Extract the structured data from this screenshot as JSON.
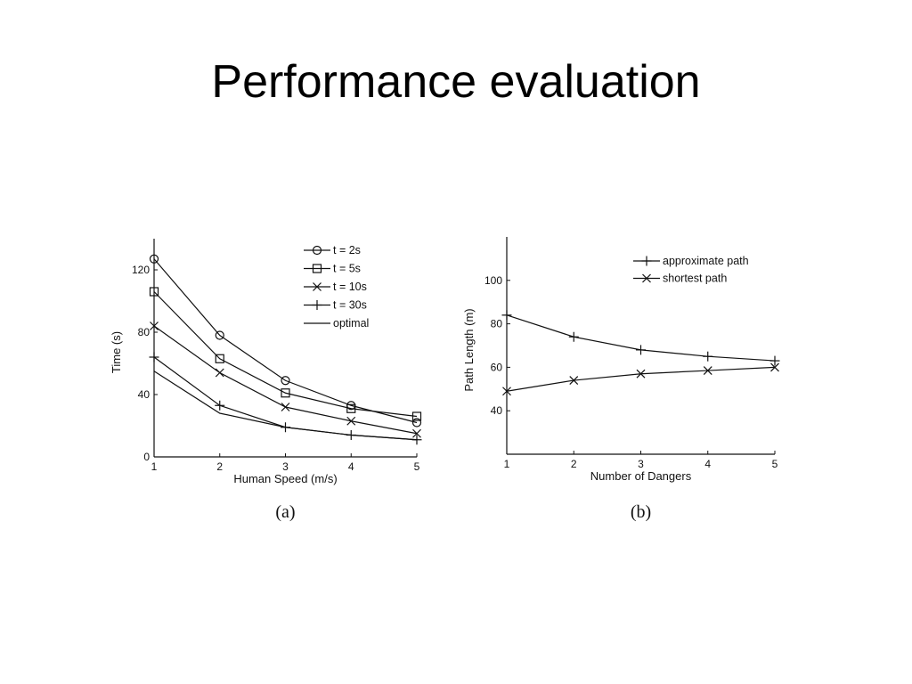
{
  "slide": {
    "title": "Performance evaluation"
  },
  "colors": {
    "ink": "#111111",
    "background": "#ffffff"
  },
  "chart_data": [
    {
      "id": "a",
      "type": "line",
      "caption": "(a)",
      "title": "",
      "xlabel": "Human Speed (m/s)",
      "ylabel": "Time (s)",
      "xlim": [
        1,
        5
      ],
      "ylim": [
        0,
        140
      ],
      "xticks": [
        1,
        2,
        3,
        4,
        5
      ],
      "yticks": [
        0,
        40,
        80,
        120
      ],
      "grid": false,
      "legend_position": "top-right",
      "x": [
        1,
        2,
        3,
        4,
        5
      ],
      "series": [
        {
          "name": "t = 2s",
          "marker": "circle",
          "values": [
            127,
            78,
            49,
            33,
            22
          ]
        },
        {
          "name": "t = 5s",
          "marker": "square",
          "values": [
            106,
            63,
            41,
            31,
            26
          ]
        },
        {
          "name": "t = 10s",
          "marker": "x",
          "values": [
            84,
            54,
            32,
            23,
            15
          ]
        },
        {
          "name": "t = 30s",
          "marker": "plus",
          "values": [
            64,
            33,
            19,
            14,
            11
          ]
        },
        {
          "name": "optimal",
          "marker": "none",
          "values": [
            55,
            28,
            19,
            14,
            11
          ]
        }
      ]
    },
    {
      "id": "b",
      "type": "line",
      "caption": "(b)",
      "title": "",
      "xlabel": "Number of Dangers",
      "ylabel": "Path Length (m)",
      "xlim": [
        1,
        5
      ],
      "ylim": [
        20,
        120
      ],
      "xticks": [
        1,
        2,
        3,
        4,
        5
      ],
      "yticks": [
        40,
        60,
        80,
        100
      ],
      "grid": false,
      "legend_position": "top-right",
      "x": [
        1,
        2,
        3,
        4,
        5
      ],
      "series": [
        {
          "name": "approximate path",
          "marker": "plus",
          "values": [
            84,
            74,
            68,
            65,
            63
          ]
        },
        {
          "name": "shortest path",
          "marker": "x",
          "values": [
            49,
            54,
            57,
            58.5,
            60
          ]
        }
      ]
    }
  ]
}
